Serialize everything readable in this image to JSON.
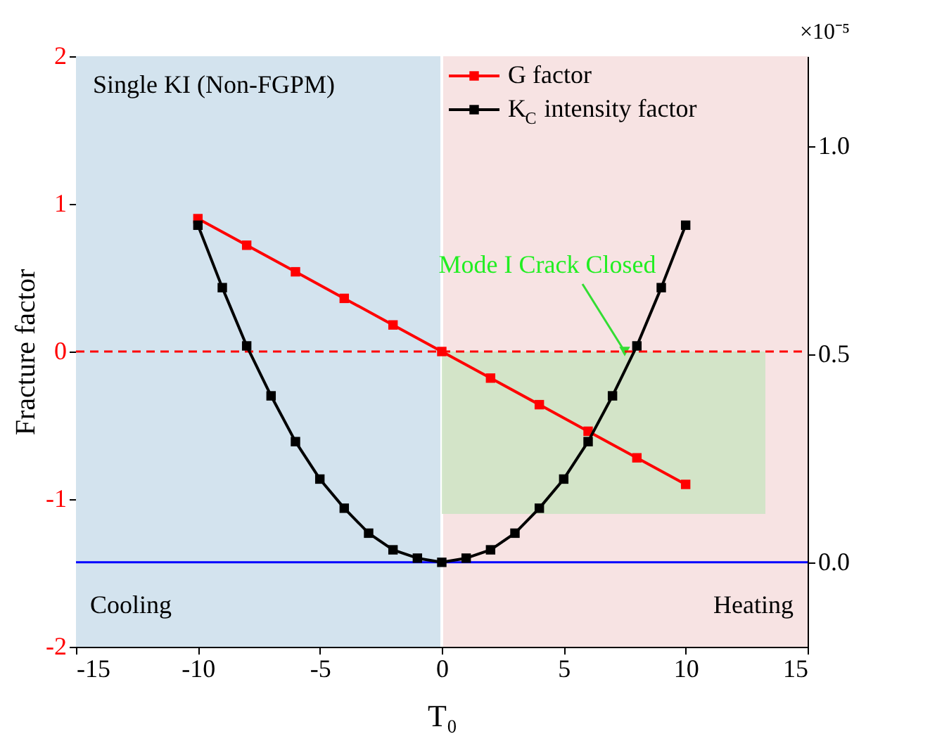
{
  "chart_data": {
    "type": "line",
    "xlabel": "T₀",
    "ylabel": "Fracture factor",
    "y2label": "×10⁻⁵",
    "xlim": [
      -15,
      15
    ],
    "xticks": [
      -15,
      -10,
      -5,
      0,
      5,
      10,
      15
    ],
    "ylim": [
      -2,
      2
    ],
    "yticks": [
      -2,
      -1,
      0,
      1,
      2
    ],
    "y2lim": [
      -0.203,
      1.216
    ],
    "y2ticks": [
      {
        "value": 0,
        "label": "0.0"
      },
      {
        "value": 0.5,
        "label": "0.5"
      },
      {
        "value": 1.0,
        "label": "1.0"
      }
    ],
    "marker": "square",
    "line_style": "solid",
    "legend": "top right",
    "series": [
      {
        "name": "G factor",
        "color": "#ff0000",
        "x": [
          -10,
          -8,
          -6,
          -4,
          -2,
          0,
          2,
          4,
          6,
          8,
          10
        ],
        "values": [
          0.9,
          0.72,
          0.54,
          0.36,
          0.18,
          0,
          -0.18,
          -0.36,
          -0.54,
          -0.72,
          -0.9
        ]
      },
      {
        "name": "K$_{C}$ intensity factor",
        "color": "#000000",
        "axis": "y2",
        "x": [
          -10,
          -9,
          -8,
          -7,
          -6,
          -5,
          -4,
          -3,
          -2,
          -1,
          0,
          1,
          2,
          3,
          4,
          5,
          6,
          7,
          8,
          9,
          10
        ],
        "values": [
          0.81,
          0.66,
          0.52,
          0.4,
          0.29,
          0.2,
          0.13,
          0.07,
          0.03,
          0.01,
          0,
          0.01,
          0.03,
          0.07,
          0.13,
          0.2,
          0.29,
          0.4,
          0.52,
          0.66,
          0.81
        ]
      }
    ],
    "ref_lines": [
      {
        "axis": "y",
        "value": 0,
        "color": "#ff0000",
        "line_style": "dashed"
      },
      {
        "axis": "y2",
        "value": 0,
        "color": "#0000ff",
        "line_style": "solid"
      }
    ],
    "bands": [
      {
        "axis": "x",
        "from": -15,
        "to": 0,
        "label": "Cooling",
        "color": "#d3e3ee"
      },
      {
        "axis": "x",
        "from": 0,
        "to": 15,
        "label": "Heating",
        "color": "#f7e3e3"
      },
      {
        "axis": "y",
        "from": -1.1,
        "to": 0,
        "color": "#c9e3c0"
      }
    ],
    "annotations": [
      "Single KI (Non-FGPM)",
      {
        "text": "Mode I Crack Closed",
        "x": 7.5,
        "y": 0
      }
    ]
  }
}
